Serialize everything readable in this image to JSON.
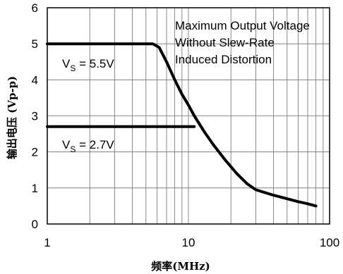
{
  "chart_data": {
    "type": "line",
    "title": "",
    "xlabel": "频率(MHz)",
    "ylabel": "输出电压 (Vp-p)",
    "x_scale": "log",
    "xlim": [
      1,
      100
    ],
    "ylim": [
      0,
      6
    ],
    "x_ticks": [
      "1",
      "10",
      "100"
    ],
    "y_ticks": [
      "0",
      "1",
      "2",
      "3",
      "4",
      "5",
      "6"
    ],
    "grid": true,
    "annotation_lines": [
      "Maximum Output Voltage",
      "Without Slew-Rate",
      "Induced Distortion"
    ],
    "series": [
      {
        "label_main": "V",
        "label_sub": "S",
        "label_value": " = 5.5V",
        "x": [
          1,
          5.6,
          6.2,
          7,
          8,
          9,
          10,
          11,
          13,
          15,
          18,
          22,
          26,
          30,
          40,
          50,
          60,
          70,
          80
        ],
        "y": [
          5.0,
          5.0,
          4.9,
          4.5,
          4.0,
          3.6,
          3.3,
          3.0,
          2.55,
          2.2,
          1.8,
          1.4,
          1.12,
          0.95,
          0.8,
          0.7,
          0.62,
          0.56,
          0.5
        ]
      },
      {
        "label_main": "V",
        "label_sub": "S",
        "label_value": " = 2.7V",
        "x": [
          1,
          10,
          11
        ],
        "y": [
          2.7,
          2.7,
          2.7
        ]
      }
    ]
  }
}
